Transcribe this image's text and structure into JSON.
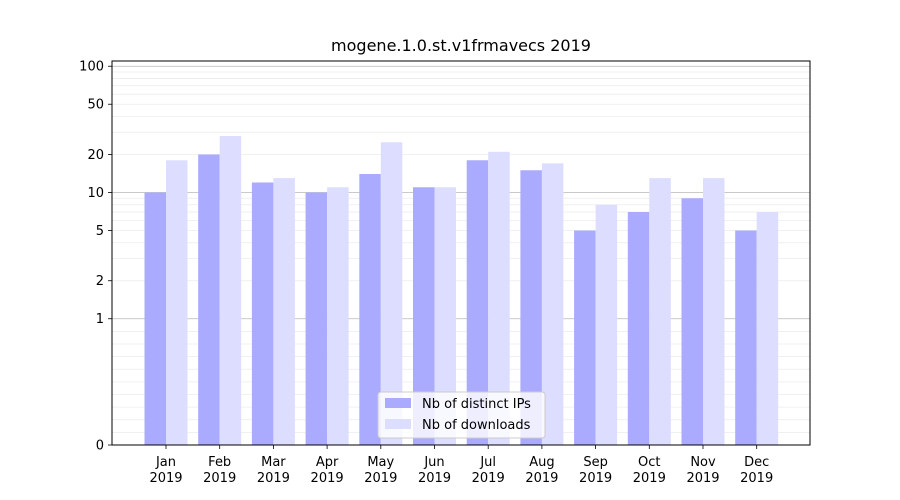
{
  "chart_data": {
    "type": "bar",
    "title": "mogene.1.0.st.v1frmavecs 2019",
    "xlabel": "",
    "ylabel": "",
    "y_scale": "symlog",
    "ylim": [
      0,
      110
    ],
    "y_ticks": [
      0,
      1,
      2,
      5,
      10,
      20,
      50,
      100
    ],
    "y_tick_labels": [
      "0",
      "1",
      "2",
      "5",
      "10",
      "20",
      "50",
      "100"
    ],
    "grid": true,
    "legend_position": "bottom-center",
    "categories": [
      {
        "month": "Jan",
        "year": "2019"
      },
      {
        "month": "Feb",
        "year": "2019"
      },
      {
        "month": "Mar",
        "year": "2019"
      },
      {
        "month": "Apr",
        "year": "2019"
      },
      {
        "month": "May",
        "year": "2019"
      },
      {
        "month": "Jun",
        "year": "2019"
      },
      {
        "month": "Jul",
        "year": "2019"
      },
      {
        "month": "Aug",
        "year": "2019"
      },
      {
        "month": "Sep",
        "year": "2019"
      },
      {
        "month": "Oct",
        "year": "2019"
      },
      {
        "month": "Nov",
        "year": "2019"
      },
      {
        "month": "Dec",
        "year": "2019"
      }
    ],
    "series": [
      {
        "name": "Nb of distinct IPs",
        "color": "#aaaaff",
        "values": [
          10,
          20,
          12,
          10,
          14,
          11,
          18,
          15,
          5,
          7,
          9,
          5
        ]
      },
      {
        "name": "Nb of downloads",
        "color": "#ddddff",
        "values": [
          18,
          28,
          13,
          11,
          25,
          11,
          21,
          17,
          8,
          13,
          13,
          7
        ]
      }
    ]
  }
}
